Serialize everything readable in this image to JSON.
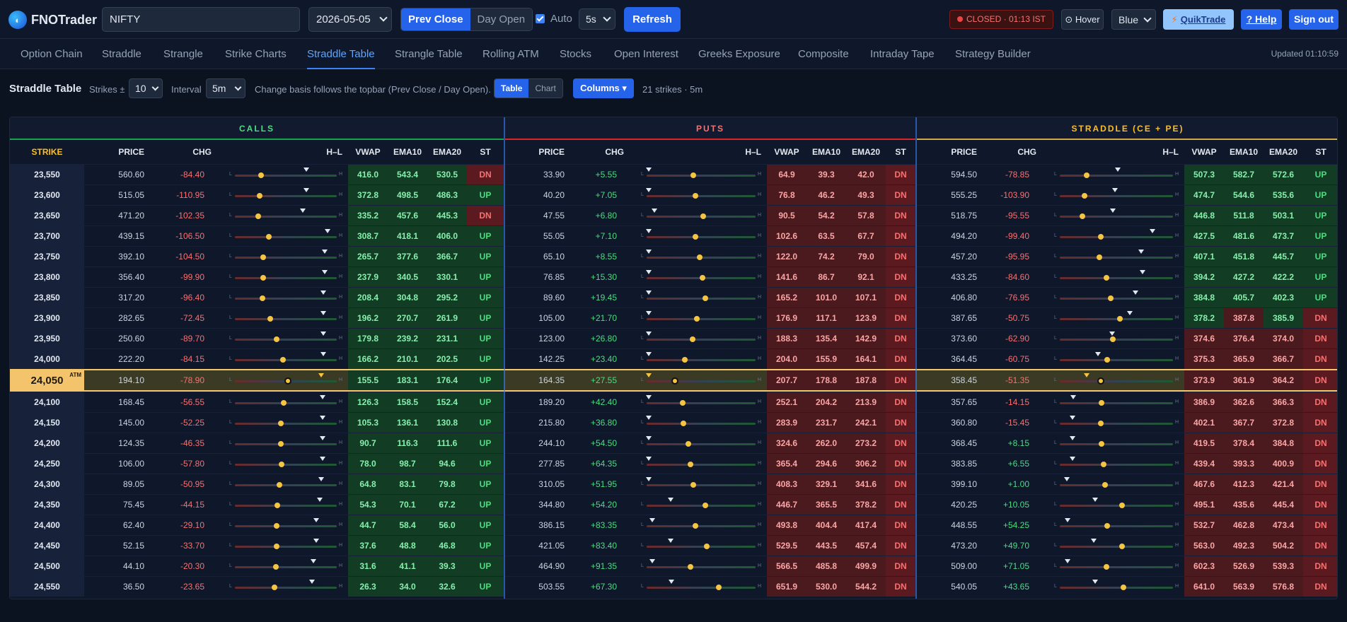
{
  "header": {
    "brand_fno": "FNO",
    "brand_trader": "Trader",
    "symbol": "NIFTY",
    "expiry": "2026-05-05",
    "basis_options": [
      "Prev Close",
      "Day Open"
    ],
    "auto_label": "Auto",
    "auto_interval": "5s",
    "refresh": "Refresh",
    "status": "CLOSED · 01:13 IST",
    "hover": "⊙ Hover",
    "theme": "Blue",
    "quiktrade": "QuikTrade",
    "help": "? Help",
    "signout": "Sign out"
  },
  "tabs": [
    "Option Chain",
    "Straddle",
    "Strangle",
    "Strike Charts",
    "Straddle Table",
    "Strangle Table",
    "Rolling ATM",
    "Stocks",
    "Open Interest",
    "Greeks Exposure",
    "Composite",
    "Intraday Tape",
    "Strategy Builder"
  ],
  "active_tab": "Straddle Table",
  "updated": "Updated 01:10:59",
  "controls": {
    "title": "Straddle Table",
    "strikes_label": "Strikes ±",
    "strikes": "10",
    "interval_label": "Interval",
    "interval": "5m",
    "note": "Change basis follows the topbar (Prev Close / Day Open).",
    "view_options": [
      "Table",
      "Chart"
    ],
    "columns": "Columns ▾",
    "summary": "21 strikes · 5m"
  },
  "sections": {
    "calls": "CALLS",
    "puts": "PUTS",
    "straddle": "STRADDLE (CE + PE)"
  },
  "col_headers": {
    "strike": "STRIKE",
    "price": "PRICE",
    "chg": "CHG",
    "hl": "H–L",
    "vwap": "VWAP",
    "ema10": "EMA10",
    "ema20": "EMA20",
    "st": "ST"
  },
  "hl_labels": {
    "low": "L",
    "high": "H"
  },
  "atm_tag": "ATM",
  "rows": [
    {
      "strike": "23,550",
      "c": [
        "560.60",
        "-84.40",
        "416.0",
        "543.4",
        "530.5",
        "DN"
      ],
      "p": [
        "33.90",
        "+5.55",
        "64.9",
        "39.3",
        "42.0",
        "DN"
      ],
      "s": [
        "594.50",
        "-78.85",
        "507.3",
        "582.7",
        "572.6",
        "UP"
      ],
      "ch": [
        0.26,
        0.7
      ],
      "ph": [
        0.43,
        0.02
      ],
      "sh": [
        0.24,
        0.51
      ]
    },
    {
      "strike": "23,600",
      "c": [
        "515.05",
        "-110.95",
        "372.8",
        "498.5",
        "486.3",
        "UP"
      ],
      "p": [
        "40.20",
        "+7.05",
        "76.8",
        "46.2",
        "49.3",
        "DN"
      ],
      "s": [
        "555.25",
        "-103.90",
        "474.7",
        "544.6",
        "535.6",
        "UP"
      ],
      "ch": [
        0.24,
        0.7
      ],
      "ph": [
        0.45,
        0.02
      ],
      "sh": [
        0.22,
        0.49
      ]
    },
    {
      "strike": "23,650",
      "c": [
        "471.20",
        "-102.35",
        "335.2",
        "457.6",
        "445.3",
        "DN"
      ],
      "p": [
        "47.55",
        "+6.80",
        "90.5",
        "54.2",
        "57.8",
        "DN"
      ],
      "s": [
        "518.75",
        "-95.55",
        "446.8",
        "511.8",
        "503.1",
        "UP"
      ],
      "ch": [
        0.23,
        0.67
      ],
      "ph": [
        0.52,
        0.07
      ],
      "sh": [
        0.2,
        0.47
      ]
    },
    {
      "strike": "23,700",
      "c": [
        "439.15",
        "-106.50",
        "308.7",
        "418.1",
        "406.0",
        "UP"
      ],
      "p": [
        "55.05",
        "+7.10",
        "102.6",
        "63.5",
        "67.7",
        "DN"
      ],
      "s": [
        "494.20",
        "-99.40",
        "427.5",
        "481.6",
        "473.7",
        "UP"
      ],
      "ch": [
        0.33,
        0.91
      ],
      "ph": [
        0.45,
        0.02
      ],
      "sh": [
        0.36,
        0.82
      ]
    },
    {
      "strike": "23,750",
      "c": [
        "392.10",
        "-104.50",
        "265.7",
        "377.6",
        "366.7",
        "UP"
      ],
      "p": [
        "65.10",
        "+8.55",
        "122.0",
        "74.2",
        "79.0",
        "DN"
      ],
      "s": [
        "457.20",
        "-95.95",
        "407.1",
        "451.8",
        "445.7",
        "UP"
      ],
      "ch": [
        0.28,
        0.88
      ],
      "ph": [
        0.49,
        0.02
      ],
      "sh": [
        0.35,
        0.72
      ]
    },
    {
      "strike": "23,800",
      "c": [
        "356.40",
        "-99.90",
        "237.9",
        "340.5",
        "330.1",
        "UP"
      ],
      "p": [
        "76.85",
        "+15.30",
        "141.6",
        "86.7",
        "92.1",
        "DN"
      ],
      "s": [
        "433.25",
        "-84.60",
        "394.2",
        "427.2",
        "422.2",
        "UP"
      ],
      "ch": [
        0.28,
        0.88
      ],
      "ph": [
        0.51,
        0.02
      ],
      "sh": [
        0.41,
        0.73
      ]
    },
    {
      "strike": "23,850",
      "c": [
        "317.20",
        "-96.40",
        "208.4",
        "304.8",
        "295.2",
        "UP"
      ],
      "p": [
        "89.60",
        "+19.45",
        "165.2",
        "101.0",
        "107.1",
        "DN"
      ],
      "s": [
        "406.80",
        "-76.95",
        "384.8",
        "405.7",
        "402.3",
        "UP"
      ],
      "ch": [
        0.27,
        0.87
      ],
      "ph": [
        0.54,
        0.02
      ],
      "sh": [
        0.45,
        0.67
      ]
    },
    {
      "strike": "23,900",
      "c": [
        "282.65",
        "-72.45",
        "196.2",
        "270.7",
        "261.9",
        "UP"
      ],
      "p": [
        "105.00",
        "+21.70",
        "176.9",
        "117.1",
        "123.9",
        "DN"
      ],
      "s": [
        "387.65",
        "-50.75",
        "378.2",
        "387.8",
        "385.9",
        "DN"
      ],
      "ch": [
        0.35,
        0.87
      ],
      "ph": [
        0.46,
        0.02
      ],
      "sh": [
        0.53,
        0.62
      ]
    },
    {
      "strike": "23,950",
      "c": [
        "250.60",
        "-89.70",
        "179.8",
        "239.2",
        "231.1",
        "UP"
      ],
      "p": [
        "123.00",
        "+26.80",
        "188.3",
        "135.4",
        "142.9",
        "DN"
      ],
      "s": [
        "373.60",
        "-62.90",
        "374.6",
        "376.4",
        "374.0",
        "DN"
      ],
      "ch": [
        0.41,
        0.87
      ],
      "ph": [
        0.42,
        0.02
      ],
      "sh": [
        0.47,
        0.46
      ]
    },
    {
      "strike": "24,000",
      "c": [
        "222.20",
        "-84.15",
        "166.2",
        "210.1",
        "202.5",
        "UP"
      ],
      "p": [
        "142.25",
        "+23.40",
        "204.0",
        "155.9",
        "164.1",
        "DN"
      ],
      "s": [
        "364.45",
        "-60.75",
        "375.3",
        "365.9",
        "366.7",
        "DN"
      ],
      "ch": [
        0.47,
        0.87
      ],
      "ph": [
        0.35,
        0.02
      ],
      "sh": [
        0.42,
        0.34
      ]
    },
    {
      "strike": "24,050",
      "atm": true,
      "c": [
        "194.10",
        "-78.90",
        "155.5",
        "183.1",
        "176.4",
        "UP"
      ],
      "p": [
        "164.35",
        "+27.55",
        "207.7",
        "178.8",
        "187.8",
        "DN"
      ],
      "s": [
        "358.45",
        "-51.35",
        "373.9",
        "361.9",
        "364.2",
        "DN"
      ],
      "ch": [
        0.52,
        0.85
      ],
      "ph": [
        0.26,
        0.02
      ],
      "sh": [
        0.36,
        0.24
      ]
    },
    {
      "strike": "24,100",
      "c": [
        "168.45",
        "-56.55",
        "126.3",
        "158.5",
        "152.4",
        "UP"
      ],
      "p": [
        "189.20",
        "+42.40",
        "252.1",
        "204.2",
        "213.9",
        "DN"
      ],
      "s": [
        "357.65",
        "-14.15",
        "386.9",
        "362.6",
        "366.3",
        "DN"
      ],
      "ch": [
        0.48,
        0.86
      ],
      "ph": [
        0.33,
        0.02
      ],
      "sh": [
        0.37,
        0.12
      ]
    },
    {
      "strike": "24,150",
      "c": [
        "145.00",
        "-52.25",
        "105.3",
        "136.1",
        "130.8",
        "UP"
      ],
      "p": [
        "215.80",
        "+36.80",
        "283.9",
        "231.7",
        "242.1",
        "DN"
      ],
      "s": [
        "360.80",
        "-15.45",
        "402.1",
        "367.7",
        "372.8",
        "DN"
      ],
      "ch": [
        0.45,
        0.86
      ],
      "ph": [
        0.34,
        0.02
      ],
      "sh": [
        0.36,
        0.11
      ]
    },
    {
      "strike": "24,200",
      "c": [
        "124.35",
        "-46.35",
        "90.7",
        "116.3",
        "111.6",
        "UP"
      ],
      "p": [
        "244.10",
        "+54.50",
        "324.6",
        "262.0",
        "273.2",
        "DN"
      ],
      "s": [
        "368.45",
        "+8.15",
        "419.5",
        "378.4",
        "384.8",
        "DN"
      ],
      "ch": [
        0.45,
        0.86
      ],
      "ph": [
        0.38,
        0.02
      ],
      "sh": [
        0.37,
        0.11
      ]
    },
    {
      "strike": "24,250",
      "c": [
        "106.00",
        "-57.80",
        "78.0",
        "98.7",
        "94.6",
        "UP"
      ],
      "p": [
        "277.85",
        "+64.35",
        "365.4",
        "294.6",
        "306.2",
        "DN"
      ],
      "s": [
        "383.85",
        "+6.55",
        "439.4",
        "393.3",
        "400.9",
        "DN"
      ],
      "ch": [
        0.46,
        0.86
      ],
      "ph": [
        0.4,
        0.02
      ],
      "sh": [
        0.39,
        0.11
      ]
    },
    {
      "strike": "24,300",
      "c": [
        "89.05",
        "-50.95",
        "64.8",
        "83.1",
        "79.8",
        "UP"
      ],
      "p": [
        "310.05",
        "+51.95",
        "408.3",
        "329.1",
        "341.6",
        "DN"
      ],
      "s": [
        "399.10",
        "+1.00",
        "467.6",
        "412.3",
        "421.4",
        "DN"
      ],
      "ch": [
        0.44,
        0.85
      ],
      "ph": [
        0.43,
        0.02
      ],
      "sh": [
        0.4,
        0.06
      ]
    },
    {
      "strike": "24,350",
      "c": [
        "75.45",
        "-44.15",
        "54.3",
        "70.1",
        "67.2",
        "UP"
      ],
      "p": [
        "344.80",
        "+54.20",
        "446.7",
        "365.5",
        "378.2",
        "DN"
      ],
      "s": [
        "420.25",
        "+10.05",
        "495.1",
        "435.6",
        "445.4",
        "DN"
      ],
      "ch": [
        0.42,
        0.83
      ],
      "ph": [
        0.54,
        0.22
      ],
      "sh": [
        0.55,
        0.31
      ]
    },
    {
      "strike": "24,400",
      "c": [
        "62.40",
        "-29.10",
        "44.7",
        "58.4",
        "56.0",
        "UP"
      ],
      "p": [
        "386.15",
        "+83.35",
        "493.8",
        "404.4",
        "417.4",
        "DN"
      ],
      "s": [
        "448.55",
        "+54.25",
        "532.7",
        "462.8",
        "473.4",
        "DN"
      ],
      "ch": [
        0.41,
        0.8
      ],
      "ph": [
        0.45,
        0.05
      ],
      "sh": [
        0.42,
        0.07
      ]
    },
    {
      "strike": "24,450",
      "c": [
        "52.15",
        "-33.70",
        "37.6",
        "48.8",
        "46.8",
        "UP"
      ],
      "p": [
        "421.05",
        "+83.40",
        "529.5",
        "443.5",
        "457.4",
        "DN"
      ],
      "s": [
        "473.20",
        "+49.70",
        "563.0",
        "492.3",
        "504.2",
        "DN"
      ],
      "ch": [
        0.41,
        0.8
      ],
      "ph": [
        0.55,
        0.22
      ],
      "sh": [
        0.55,
        0.3
      ]
    },
    {
      "strike": "24,500",
      "c": [
        "44.10",
        "-20.30",
        "31.6",
        "41.1",
        "39.3",
        "UP"
      ],
      "p": [
        "464.90",
        "+91.35",
        "566.5",
        "485.8",
        "499.9",
        "DN"
      ],
      "s": [
        "509.00",
        "+71.05",
        "602.3",
        "526.9",
        "539.3",
        "DN"
      ],
      "ch": [
        0.4,
        0.77
      ],
      "ph": [
        0.4,
        0.05
      ],
      "sh": [
        0.41,
        0.07
      ]
    },
    {
      "strike": "24,550",
      "c": [
        "36.50",
        "-23.65",
        "26.3",
        "34.0",
        "32.6",
        "UP"
      ],
      "p": [
        "503.55",
        "+67.30",
        "651.9",
        "530.0",
        "544.2",
        "DN"
      ],
      "s": [
        "540.05",
        "+43.65",
        "641.0",
        "563.9",
        "576.8",
        "DN"
      ],
      "ch": [
        0.39,
        0.76
      ],
      "ph": [
        0.66,
        0.23
      ],
      "sh": [
        0.56,
        0.31
      ]
    }
  ]
}
